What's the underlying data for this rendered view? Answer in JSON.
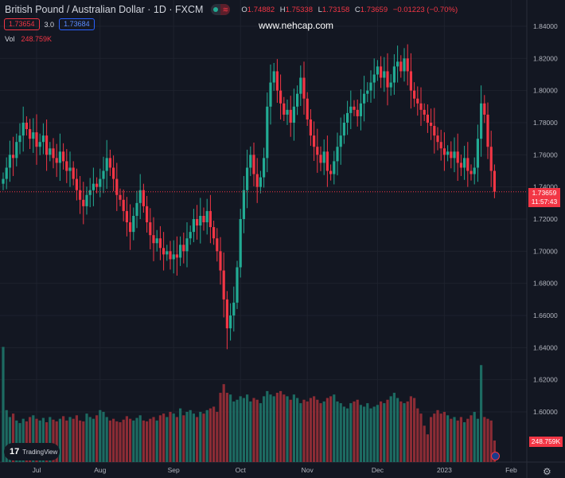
{
  "header": {
    "title": "British Pound / Australian Dollar · 1D · FXCM",
    "ohlc": {
      "o_label": "O",
      "o": "1.74882",
      "h_label": "H",
      "h": "1.75338",
      "l_label": "L",
      "l": "1.73158",
      "c_label": "C",
      "c": "1.73659",
      "change": "−0.01223 (−0.70%)"
    },
    "bid": "1.73654",
    "spread": "3.0",
    "ask": "1.73684",
    "vol_label": "Vol",
    "vol_value": "248.759K"
  },
  "watermark": "www.nehcap.com",
  "price_tag": {
    "price": "1.73659",
    "countdown": "11:57:43"
  },
  "volume_tag": "248.759K",
  "branding": "TradingView",
  "colors": {
    "up": "#22ab94",
    "down": "#f23645",
    "vol_up": "#1d6b62",
    "vol_down": "#8c2c35",
    "bg": "#131722",
    "grid": "#1e222d"
  },
  "chart_data": {
    "type": "candlestick",
    "symbol": "GBPAUD",
    "y_ticks": [
      "1.84000",
      "1.82000",
      "1.80000",
      "1.78000",
      "1.76000",
      "1.74000",
      "1.72000",
      "1.70000",
      "1.68000",
      "1.66000",
      "1.64000",
      "1.62000",
      "1.60000"
    ],
    "ylim": [
      1.6,
      1.84
    ],
    "x_ticks": [
      {
        "label": "Jul",
        "index": 10
      },
      {
        "label": "Aug",
        "index": 29
      },
      {
        "label": "Sep",
        "index": 51
      },
      {
        "label": "Oct",
        "index": 71
      },
      {
        "label": "Nov",
        "index": 91
      },
      {
        "label": "Dec",
        "index": 112
      },
      {
        "label": "2023",
        "index": 132
      },
      {
        "label": "Feb",
        "index": 152
      }
    ],
    "first_open": 1.742,
    "closes": [
      1.745,
      1.752,
      1.76,
      1.758,
      1.768,
      1.772,
      1.78,
      1.776,
      1.77,
      1.774,
      1.765,
      1.768,
      1.772,
      1.76,
      1.764,
      1.758,
      1.755,
      1.762,
      1.756,
      1.75,
      1.752,
      1.745,
      1.738,
      1.732,
      1.728,
      1.735,
      1.738,
      1.742,
      1.74,
      1.745,
      1.75,
      1.758,
      1.752,
      1.745,
      1.735,
      1.732,
      1.725,
      1.718,
      1.712,
      1.722,
      1.73,
      1.738,
      1.728,
      1.718,
      1.71,
      1.705,
      1.708,
      1.702,
      1.698,
      1.7,
      1.695,
      1.698,
      1.696,
      1.704,
      1.7,
      1.708,
      1.712,
      1.72,
      1.716,
      1.722,
      1.718,
      1.725,
      1.715,
      1.708,
      1.7,
      1.688,
      1.67,
      1.652,
      1.66,
      1.668,
      1.69,
      1.72,
      1.738,
      1.752,
      1.76,
      1.748,
      1.74,
      1.746,
      1.758,
      1.79,
      1.805,
      1.812,
      1.8,
      1.792,
      1.785,
      1.788,
      1.78,
      1.79,
      1.798,
      1.808,
      1.795,
      1.782,
      1.772,
      1.765,
      1.76,
      1.755,
      1.762,
      1.75,
      1.748,
      1.756,
      1.765,
      1.772,
      1.78,
      1.786,
      1.79,
      1.788,
      1.784,
      1.792,
      1.798,
      1.8,
      1.805,
      1.81,
      1.815,
      1.808,
      1.812,
      1.802,
      1.805,
      1.815,
      1.818,
      1.812,
      1.82,
      1.812,
      1.8,
      1.795,
      1.792,
      1.788,
      1.785,
      1.78,
      1.778,
      1.772,
      1.768,
      1.764,
      1.76,
      1.762,
      1.758,
      1.762,
      1.755,
      1.752,
      1.758,
      1.75,
      1.748,
      1.752,
      1.77,
      1.792,
      1.785,
      1.765,
      1.75,
      1.737
    ],
    "volumes_k": [
      1330,
      600,
      520,
      560,
      480,
      450,
      500,
      470,
      520,
      540,
      500,
      480,
      510,
      460,
      520,
      490,
      470,
      500,
      530,
      480,
      520,
      500,
      540,
      480,
      470,
      560,
      520,
      500,
      540,
      600,
      580,
      520,
      480,
      500,
      470,
      460,
      490,
      530,
      500,
      480,
      510,
      540,
      480,
      470,
      500,
      520,
      480,
      540,
      560,
      520,
      580,
      560,
      520,
      620,
      540,
      580,
      600,
      560,
      520,
      580,
      560,
      600,
      620,
      640,
      580,
      800,
      900,
      800,
      780,
      700,
      720,
      760,
      740,
      780,
      700,
      740,
      720,
      680,
      760,
      820,
      780,
      760,
      800,
      820,
      780,
      760,
      720,
      780,
      740,
      680,
      720,
      700,
      740,
      760,
      720,
      680,
      700,
      740,
      760,
      780,
      700,
      680,
      640,
      620,
      680,
      700,
      720,
      660,
      640,
      680,
      620,
      640,
      660,
      700,
      680,
      720,
      760,
      800,
      740,
      700,
      680,
      700,
      760,
      740,
      620,
      560,
      420,
      320,
      520,
      560,
      600,
      560,
      580,
      540,
      500,
      520,
      480,
      520,
      460,
      500,
      540,
      580,
      500,
      1120,
      520,
      500,
      480,
      249
    ]
  }
}
